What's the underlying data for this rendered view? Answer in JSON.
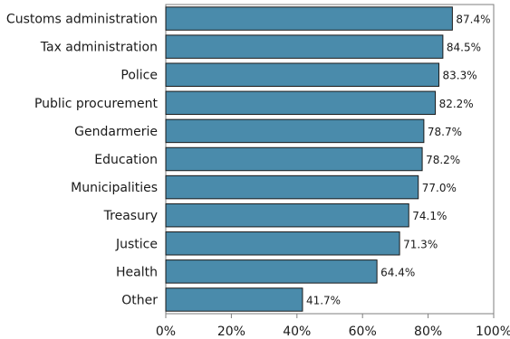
{
  "chart_data": {
    "type": "bar",
    "orientation": "horizontal",
    "categories": [
      "Customs administration",
      "Tax administration",
      "Police",
      "Public procurement",
      "Gendarmerie",
      "Education",
      "Municipalities",
      "Treasury",
      "Justice",
      "Health",
      "Other"
    ],
    "values": [
      87.4,
      84.5,
      83.3,
      82.2,
      78.7,
      78.2,
      77.0,
      74.1,
      71.3,
      64.4,
      41.7
    ],
    "value_labels": [
      "87.4%",
      "84.5%",
      "83.3%",
      "82.2%",
      "78.7%",
      "78.2%",
      "77.0%",
      "74.1%",
      "71.3%",
      "64.4%",
      "41.7%"
    ],
    "xlim": [
      0,
      100
    ],
    "x_ticks": [
      0,
      20,
      40,
      60,
      80,
      100
    ],
    "x_tick_labels": [
      "0%",
      "20%",
      "40%",
      "60%",
      "80%",
      "100%"
    ],
    "grid": false,
    "title": "",
    "xlabel": "",
    "ylabel": "",
    "colors": {
      "bar": "#4a8bab",
      "bar_outline": "#1a1a1a",
      "frame": "#7f7f7f"
    }
  }
}
